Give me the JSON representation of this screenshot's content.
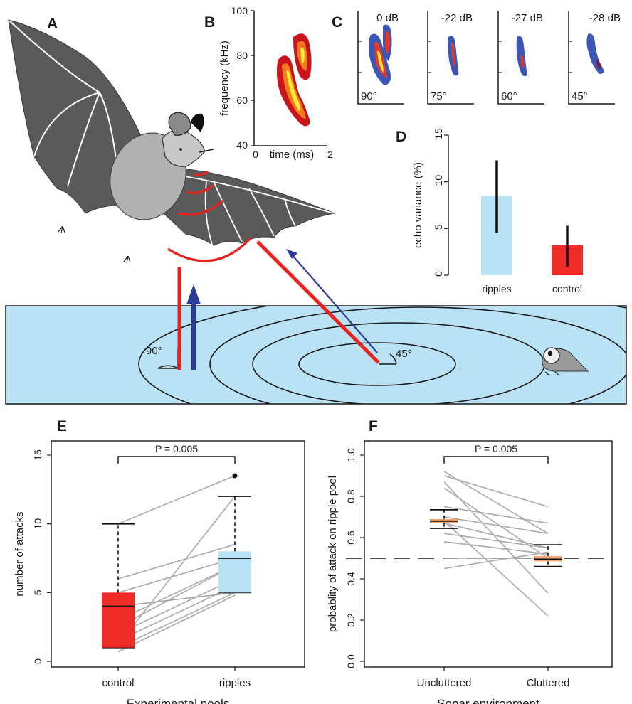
{
  "panels": {
    "A": {
      "label": "A",
      "angle_left": "90°",
      "angle_right": "45°"
    },
    "B": {
      "label": "B",
      "ylabel": "frequency (kHz)",
      "xlabel": "time (ms)",
      "yticks": [
        "40",
        "60",
        "80",
        "100"
      ],
      "xtick_left": "0",
      "xtick_right": "2"
    },
    "C": {
      "label": "C",
      "subpanels": [
        {
          "db": "0 dB",
          "angle": "90°"
        },
        {
          "db": "-22 dB",
          "angle": "75°"
        },
        {
          "db": "-27 dB",
          "angle": "60°"
        },
        {
          "db": "-28 dB",
          "angle": "45°"
        }
      ]
    },
    "D": {
      "label": "D"
    },
    "E": {
      "label": "E"
    },
    "F": {
      "label": "F"
    }
  },
  "colors": {
    "ripples": "#b9e2f5",
    "control": "#ee2b24",
    "median_f": "#f4a46b",
    "pond": "#b9e2f5",
    "bat_wing": "#5a5a5a",
    "bat_body": "#b1b1b1",
    "sound": "#e8201e",
    "echo": "#2b3a93"
  },
  "chart_data": [
    {
      "panel": "D",
      "type": "bar",
      "categories": [
        "ripples",
        "control"
      ],
      "values": [
        8.5,
        3.2
      ],
      "error_low": [
        4.5,
        0.9
      ],
      "error_high": [
        12.3,
        5.3
      ],
      "ylabel": "echo variance (%)",
      "ylim": [
        0,
        15
      ],
      "yticks": [
        0,
        5,
        10,
        15
      ],
      "grid": false
    },
    {
      "panel": "E",
      "type": "box",
      "categories": [
        "control",
        "ripples"
      ],
      "xlabel": "Experimental pools",
      "ylabel": "number of attacks",
      "ylim": [
        0,
        15
      ],
      "yticks": [
        0,
        5,
        10,
        15
      ],
      "boxes": [
        {
          "name": "control",
          "q1": 1,
          "median": 4,
          "q3": 5,
          "whisker_low": 1,
          "whisker_high": 10
        },
        {
          "name": "ripples",
          "q1": 5,
          "median": 7.5,
          "q3": 8,
          "whisker_low": 5,
          "whisker_high": 12,
          "outliers": [
            13.5
          ]
        }
      ],
      "pairs": [
        [
          10,
          13.5
        ],
        [
          6,
          8.5
        ],
        [
          5,
          7.5
        ],
        [
          4,
          5
        ],
        [
          3,
          7
        ],
        [
          2.5,
          7
        ],
        [
          2,
          6
        ],
        [
          1.5,
          5.5
        ],
        [
          1,
          5
        ],
        [
          0.7,
          4.8
        ],
        [
          1.2,
          12
        ]
      ],
      "annotation": "P = 0.005",
      "grid": false
    },
    {
      "panel": "F",
      "type": "box",
      "categories": [
        "Uncluttered",
        "Cluttered"
      ],
      "xlabel": "Sonar environment",
      "ylabel": "probablity of attack on ripple pool",
      "ylim": [
        0,
        1
      ],
      "yticks": [
        "0.0",
        "0.2",
        "0.4",
        "0.6",
        "0.8",
        "1.0"
      ],
      "reference_line": 0.5,
      "boxes": [
        {
          "name": "Uncluttered",
          "q1": 0.67,
          "median": 0.68,
          "q3": 0.69,
          "whisker_low": 0.645,
          "whisker_high": 0.735
        },
        {
          "name": "Cluttered",
          "q1": 0.485,
          "median": 0.495,
          "q3": 0.51,
          "whisker_low": 0.46,
          "whisker_high": 0.565
        }
      ],
      "pairs": [
        [
          0.92,
          0.62
        ],
        [
          0.9,
          0.75
        ],
        [
          0.87,
          0.33
        ],
        [
          0.84,
          0.5
        ],
        [
          0.75,
          0.67
        ],
        [
          0.7,
          0.62
        ],
        [
          0.67,
          0.55
        ],
        [
          0.62,
          0.55
        ],
        [
          0.58,
          0.52
        ],
        [
          0.5,
          0.5
        ],
        [
          0.45,
          0.53
        ],
        [
          0.68,
          0.22
        ]
      ],
      "annotation": "P = 0.005",
      "grid": false
    }
  ]
}
